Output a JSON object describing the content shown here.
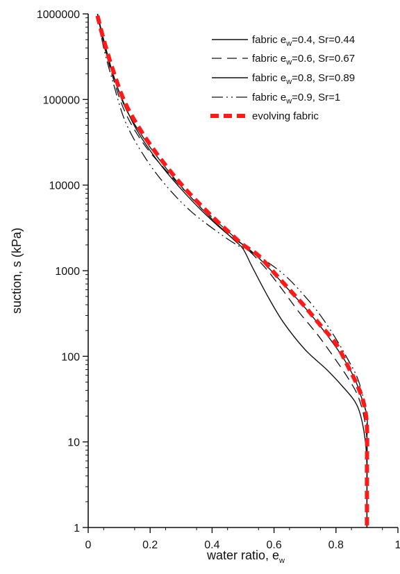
{
  "chart_data": {
    "type": "line",
    "title": "",
    "xlabel": {
      "main": "water ratio, e",
      "sub": "w"
    },
    "ylabel": "suction, s (kPa)",
    "xlim": [
      0,
      1
    ],
    "ylim": [
      1,
      1000000
    ],
    "yscale": "log",
    "grid": false,
    "legend_position": "top-right",
    "x_ticks": [
      0,
      0.2,
      0.4,
      0.6,
      0.8,
      1
    ],
    "x_tick_labels": [
      "0",
      "0.2",
      "0.4",
      "0.6",
      "0.8",
      "1"
    ],
    "y_ticks": [
      1,
      10,
      100,
      1000,
      10000,
      100000,
      1000000
    ],
    "y_tick_labels": [
      "1",
      "10",
      "100",
      "1000",
      "10000",
      "100000",
      "1000000"
    ],
    "series": [
      {
        "legend": {
          "prefix": "fabric e",
          "sub": "w",
          "suffix": "=0.4, Sr=0.44"
        },
        "style": "solid",
        "color": "#111111",
        "points": [
          [
            0.03,
            1000000
          ],
          [
            0.05,
            500000
          ],
          [
            0.08,
            200000
          ],
          [
            0.12,
            80000
          ],
          [
            0.18,
            35000
          ],
          [
            0.25,
            16000
          ],
          [
            0.32,
            8000
          ],
          [
            0.4,
            4000
          ],
          [
            0.47,
            2300
          ],
          [
            0.5,
            1800
          ],
          [
            0.53,
            1100
          ],
          [
            0.58,
            500
          ],
          [
            0.63,
            250
          ],
          [
            0.7,
            120
          ],
          [
            0.77,
            70
          ],
          [
            0.82,
            45
          ],
          [
            0.86,
            30
          ],
          [
            0.88,
            20
          ],
          [
            0.895,
            10
          ],
          [
            0.9,
            5
          ],
          [
            0.9,
            2
          ],
          [
            0.9,
            1
          ]
        ]
      },
      {
        "legend": {
          "prefix": "fabric e",
          "sub": "w",
          "suffix": "=0.6, Sr=0.67"
        },
        "style": "dashed",
        "color": "#111111",
        "points": [
          [
            0.03,
            1000000
          ],
          [
            0.05,
            450000
          ],
          [
            0.08,
            180000
          ],
          [
            0.12,
            70000
          ],
          [
            0.18,
            30000
          ],
          [
            0.25,
            15000
          ],
          [
            0.32,
            8000
          ],
          [
            0.4,
            4200
          ],
          [
            0.47,
            2500
          ],
          [
            0.52,
            1700
          ],
          [
            0.57,
            1100
          ],
          [
            0.62,
            650
          ],
          [
            0.68,
            330
          ],
          [
            0.74,
            180
          ],
          [
            0.8,
            90
          ],
          [
            0.84,
            55
          ],
          [
            0.87,
            35
          ],
          [
            0.89,
            20
          ],
          [
            0.9,
            10
          ],
          [
            0.9,
            3
          ],
          [
            0.9,
            1
          ]
        ]
      },
      {
        "legend": {
          "prefix": "fabric e",
          "sub": "w",
          "suffix": "=0.8, Sr=0.89"
        },
        "style": "solid",
        "color": "#111111",
        "points": [
          [
            0.03,
            1000000
          ],
          [
            0.045,
            550000
          ],
          [
            0.07,
            250000
          ],
          [
            0.11,
            100000
          ],
          [
            0.16,
            42000
          ],
          [
            0.23,
            18000
          ],
          [
            0.3,
            9000
          ],
          [
            0.38,
            4500
          ],
          [
            0.46,
            2500
          ],
          [
            0.51,
            1900
          ],
          [
            0.57,
            1200
          ],
          [
            0.63,
            700
          ],
          [
            0.7,
            370
          ],
          [
            0.76,
            200
          ],
          [
            0.82,
            100
          ],
          [
            0.86,
            55
          ],
          [
            0.88,
            35
          ],
          [
            0.9,
            20
          ],
          [
            0.9,
            10
          ],
          [
            0.9,
            1
          ]
        ]
      },
      {
        "legend": {
          "prefix": "fabric e",
          "sub": "w",
          "suffix": "=0.9, Sr=1"
        },
        "style": "dashdot",
        "color": "#111111",
        "points": [
          [
            0.03,
            1000000
          ],
          [
            0.05,
            400000
          ],
          [
            0.08,
            160000
          ],
          [
            0.12,
            55000
          ],
          [
            0.18,
            22000
          ],
          [
            0.25,
            10000
          ],
          [
            0.33,
            5000
          ],
          [
            0.42,
            2800
          ],
          [
            0.48,
            2000
          ],
          [
            0.52,
            1700
          ],
          [
            0.58,
            1250
          ],
          [
            0.64,
            850
          ],
          [
            0.7,
            500
          ],
          [
            0.75,
            300
          ],
          [
            0.8,
            160
          ],
          [
            0.84,
            90
          ],
          [
            0.87,
            55
          ],
          [
            0.89,
            30
          ],
          [
            0.9,
            15
          ],
          [
            0.9,
            5
          ],
          [
            0.9,
            1
          ]
        ]
      },
      {
        "legend": {
          "prefix": "evolving fabric",
          "sub": "",
          "suffix": ""
        },
        "style": "red-dashed",
        "color": "#ff1a1a",
        "points": [
          [
            0.03,
            950000
          ],
          [
            0.05,
            500000
          ],
          [
            0.08,
            220000
          ],
          [
            0.12,
            90000
          ],
          [
            0.18,
            38000
          ],
          [
            0.25,
            17000
          ],
          [
            0.32,
            8500
          ],
          [
            0.4,
            4300
          ],
          [
            0.47,
            2500
          ],
          [
            0.5,
            2000
          ],
          [
            0.55,
            1500
          ],
          [
            0.6,
            950
          ],
          [
            0.65,
            600
          ],
          [
            0.7,
            380
          ],
          [
            0.75,
            230
          ],
          [
            0.8,
            140
          ],
          [
            0.84,
            75
          ],
          [
            0.87,
            45
          ],
          [
            0.89,
            28
          ],
          [
            0.9,
            15
          ],
          [
            0.9,
            5
          ],
          [
            0.9,
            1
          ]
        ]
      }
    ]
  }
}
